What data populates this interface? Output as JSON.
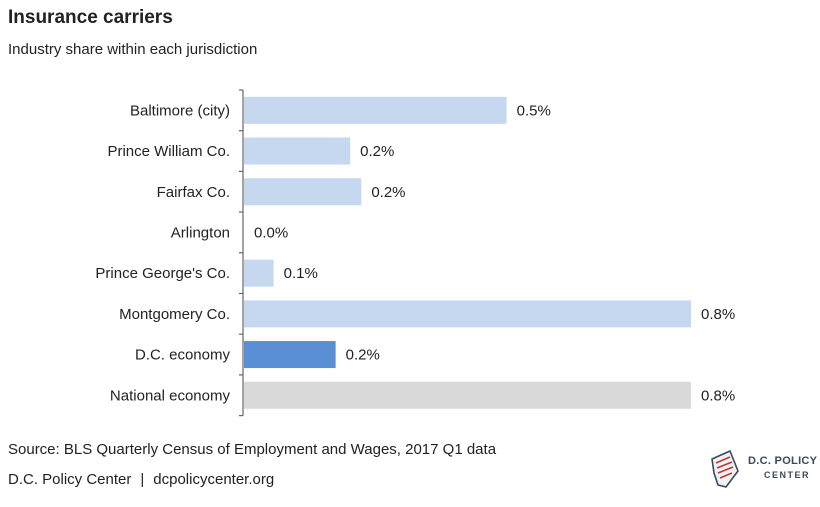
{
  "chart_data": {
    "type": "bar",
    "orientation": "horizontal",
    "title": "Insurance carriers",
    "subtitle": "Industry share within each jurisdiction",
    "categories": [
      "Baltimore (city)",
      "Prince William Co.",
      "Fairfax Co.",
      "Arlington",
      "Prince George's Co.",
      "Montgomery Co.",
      "D.C. economy",
      "National economy"
    ],
    "values": [
      0.5,
      0.2,
      0.2,
      0.0,
      0.1,
      0.8,
      0.2,
      0.8
    ],
    "value_labels": [
      "0.5%",
      "0.2%",
      "0.2%",
      "0.0%",
      "0.1%",
      "0.8%",
      "0.2%",
      "0.8%"
    ],
    "bar_values": [
      0.47,
      0.19,
      0.21,
      0.0,
      0.053,
      0.8,
      0.164,
      0.8
    ],
    "value_max": 0.8,
    "bar_colors": [
      "#c6d8f0",
      "#c6d8f0",
      "#c6d8f0",
      "#c6d8f0",
      "#c6d8f0",
      "#c6d8f0",
      "#5a8fd6",
      "#d9d9d9"
    ],
    "grid": false,
    "legend": "none"
  },
  "footer": {
    "source": "Source: BLS Quarterly Census of Employment and Wages, 2017 Q1 data",
    "org": "D.C. Policy Center",
    "separator": "|",
    "url": "dcpolicycenter.org"
  },
  "logo": {
    "line1": "D.C. POLICY",
    "line2": "CENTER"
  }
}
